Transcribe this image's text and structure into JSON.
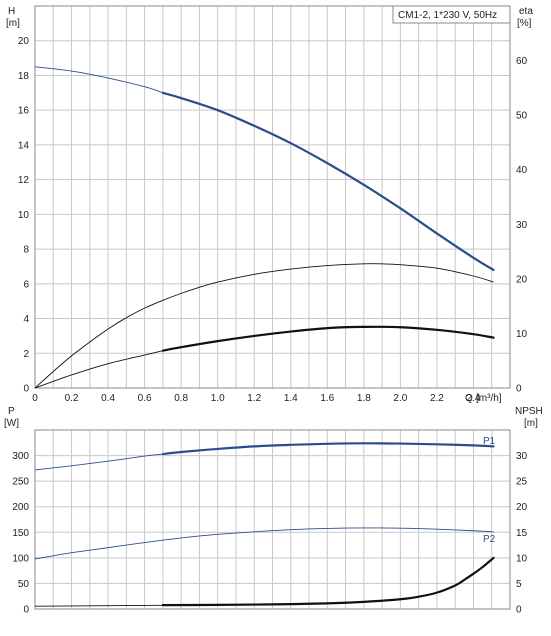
{
  "chart_data": [
    {
      "id": "top",
      "type": "line",
      "title_box": "CM1-2, 1*230 V, 50Hz",
      "x": {
        "label": "Q [m³/h]",
        "label_main": "Q",
        "label_unit": "[m³/h]",
        "min": 0,
        "max": 2.6,
        "tick_step": 0.1,
        "label_step": 0.2,
        "tick_labels": [
          "0",
          "0.2",
          "0.4",
          "0.6",
          "0.8",
          "1.0",
          "1.2",
          "1.4",
          "1.6",
          "1.8",
          "2.0",
          "2.2",
          "2.4"
        ]
      },
      "y_left": {
        "label_top": "H",
        "label_unit": "[m]",
        "min": 0,
        "max": 22,
        "tick_step": 2,
        "tick_labels": [
          "0",
          "2",
          "4",
          "6",
          "8",
          "10",
          "12",
          "14",
          "16",
          "18",
          "20"
        ]
      },
      "y_right": {
        "label_top": "eta",
        "label_unit": "[%]",
        "min": 0,
        "max": 70,
        "tick_step": 10,
        "tick_labels": [
          "0",
          "10",
          "20",
          "30",
          "40",
          "50",
          "60"
        ]
      },
      "series": [
        {
          "axis": "left",
          "color": "#2b4d8f",
          "thin_x": [
            0,
            0.2,
            0.4,
            0.6,
            0.7
          ],
          "thin_y": [
            18.5,
            18.25,
            17.85,
            17.35,
            17.0
          ],
          "thick_x": [
            0.7,
            0.8,
            1.0,
            1.2,
            1.4,
            1.6,
            1.8,
            2.0,
            2.2,
            2.4,
            2.51
          ],
          "thick_y": [
            17.0,
            16.7,
            16.0,
            15.1,
            14.1,
            12.95,
            11.7,
            10.35,
            8.9,
            7.5,
            6.8
          ]
        },
        {
          "axis": "left",
          "color": "#111111",
          "thin_x": [
            0,
            0.1,
            0.2,
            0.3,
            0.4,
            0.5,
            0.6,
            0.7,
            0.8,
            0.9,
            1.0,
            1.2,
            1.4,
            1.6,
            1.8,
            1.9,
            2.0,
            2.2,
            2.4,
            2.51
          ],
          "thin_y": [
            0,
            0.95,
            1.85,
            2.65,
            3.4,
            4.05,
            4.6,
            5.05,
            5.45,
            5.8,
            6.1,
            6.55,
            6.85,
            7.05,
            7.15,
            7.15,
            7.1,
            6.9,
            6.45,
            6.1
          ],
          "thick_x": [],
          "thick_y": []
        },
        {
          "axis": "left",
          "color": "#111111",
          "thin_x": [
            0,
            0.2,
            0.4,
            0.6,
            0.7
          ],
          "thin_y": [
            0,
            0.75,
            1.4,
            1.9,
            2.15
          ],
          "thick_x": [
            0.7,
            0.8,
            1.0,
            1.2,
            1.4,
            1.6,
            1.8,
            2.0,
            2.2,
            2.4,
            2.51
          ],
          "thick_y": [
            2.15,
            2.35,
            2.7,
            3.0,
            3.25,
            3.45,
            3.52,
            3.5,
            3.35,
            3.1,
            2.9
          ]
        }
      ]
    },
    {
      "id": "bottom",
      "type": "line",
      "x": {
        "min": 0,
        "max": 2.6,
        "tick_step": 0.1
      },
      "y_left": {
        "label_top": "P",
        "label_unit": "[W]",
        "min": 0,
        "max": 350,
        "tick_step": 50,
        "tick_labels": [
          "0",
          "50",
          "100",
          "150",
          "200",
          "250",
          "300"
        ]
      },
      "y_right": {
        "label_top": "NPSH",
        "label_unit": "[m]",
        "min": 0,
        "max": 35,
        "tick_step": 5,
        "tick_labels": [
          "0",
          "5",
          "10",
          "15",
          "20",
          "25",
          "30"
        ]
      },
      "series": [
        {
          "name": "P1",
          "axis": "left",
          "color": "#2b4d8f",
          "thin_x": [
            0,
            0.2,
            0.4,
            0.6,
            0.7
          ],
          "thin_y": [
            272,
            280,
            289,
            299,
            303
          ],
          "thick_x": [
            0.7,
            0.8,
            1.0,
            1.2,
            1.4,
            1.6,
            1.8,
            2.0,
            2.2,
            2.4,
            2.51
          ],
          "thick_y": [
            303,
            307,
            313,
            318,
            321,
            323,
            324,
            323.5,
            322,
            320,
            318
          ]
        },
        {
          "name": "P2",
          "axis": "left",
          "color": "#2b4d8f",
          "thin_x": [
            0,
            0.1,
            0.2,
            0.4,
            0.6,
            0.8,
            1.0,
            1.2,
            1.4,
            1.6,
            1.8,
            2.0,
            2.2,
            2.4,
            2.51
          ],
          "thin_y": [
            98,
            104,
            110,
            120,
            130,
            139,
            146,
            151,
            155,
            157.5,
            158.5,
            158,
            156,
            153,
            151
          ],
          "thick_x": [],
          "thick_y": []
        },
        {
          "axis": "right",
          "color": "#111111",
          "thin_x": [
            0,
            0.2,
            0.4,
            0.6,
            0.7
          ],
          "thin_y": [
            0.55,
            0.6,
            0.65,
            0.7,
            0.72
          ],
          "thick_x": [
            0.7,
            1.0,
            1.3,
            1.6,
            1.8,
            2.0,
            2.1,
            2.2,
            2.3,
            2.35,
            2.4,
            2.45,
            2.51
          ],
          "thick_y": [
            0.75,
            0.8,
            0.9,
            1.1,
            1.4,
            1.9,
            2.4,
            3.2,
            4.6,
            5.7,
            6.9,
            8.2,
            10.0
          ]
        }
      ],
      "series_labels": [
        {
          "text": "P1",
          "at_x": 2.52,
          "at_y": 330
        },
        {
          "text": "P2",
          "at_x": 2.52,
          "at_y": 138
        }
      ]
    }
  ]
}
